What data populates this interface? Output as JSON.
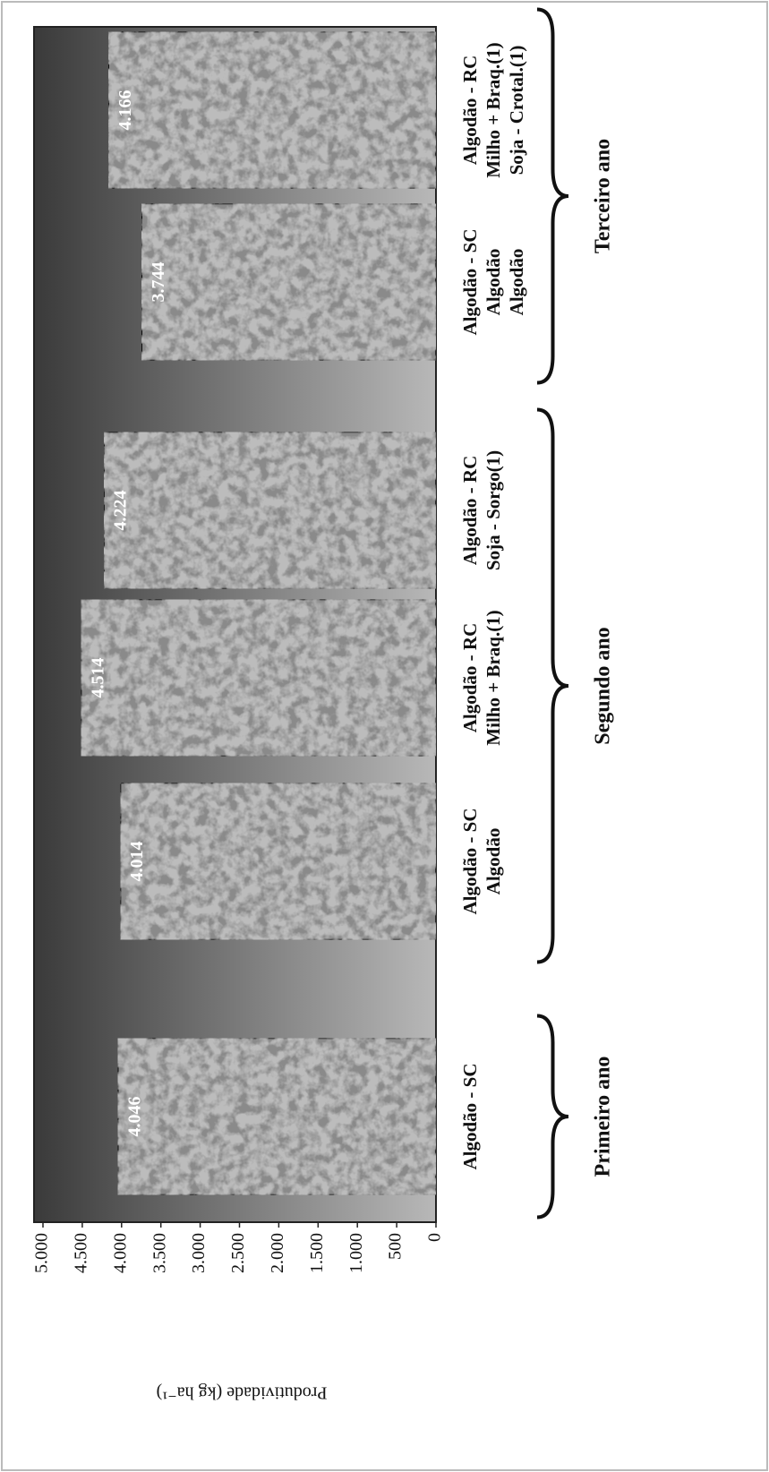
{
  "chart_data": {
    "type": "bar",
    "ylabel": "Produtividade (kg ha⁻¹)",
    "categories": [
      [
        "Algodão - SC"
      ],
      [
        "Algodão - SC",
        "Algodão"
      ],
      [
        "Algodão - RC",
        "Milho + Braq.(1)"
      ],
      [
        "Algodão - RC",
        "Soja - Sorgo(1)"
      ],
      [
        "Algodão - SC",
        "Algodão",
        "Algodão"
      ],
      [
        "Algodão - RC",
        "Milho + Braq.(1)",
        "Soja - Crotal.(1)"
      ]
    ],
    "values": [
      4046,
      4014,
      4514,
      4224,
      3744,
      4166
    ],
    "value_labels": [
      "4.046",
      "4.014",
      "4.514",
      "4.224",
      "3.744",
      "4.166"
    ],
    "groups": [
      {
        "name": "Primeiro ano",
        "size": 1
      },
      {
        "name": "Segundo ano",
        "size": 3
      },
      {
        "name": "Terceiro ano",
        "size": 2
      }
    ],
    "ylim": [
      0,
      5000
    ],
    "yticks": [
      0,
      500,
      {
        "value": 1000,
        "label": "1.000"
      },
      {
        "value": 1500,
        "label": "1.500"
      },
      {
        "value": 2000,
        "label": "2.000"
      },
      {
        "value": 2500,
        "label": "2.500"
      },
      {
        "value": 3000,
        "label": "3.000"
      },
      {
        "value": 3500,
        "label": "3.500"
      },
      {
        "value": 4000,
        "label": "4.000"
      },
      {
        "value": 4500,
        "label": "4.500"
      },
      {
        "value": 5000,
        "label": "5.000"
      }
    ]
  }
}
